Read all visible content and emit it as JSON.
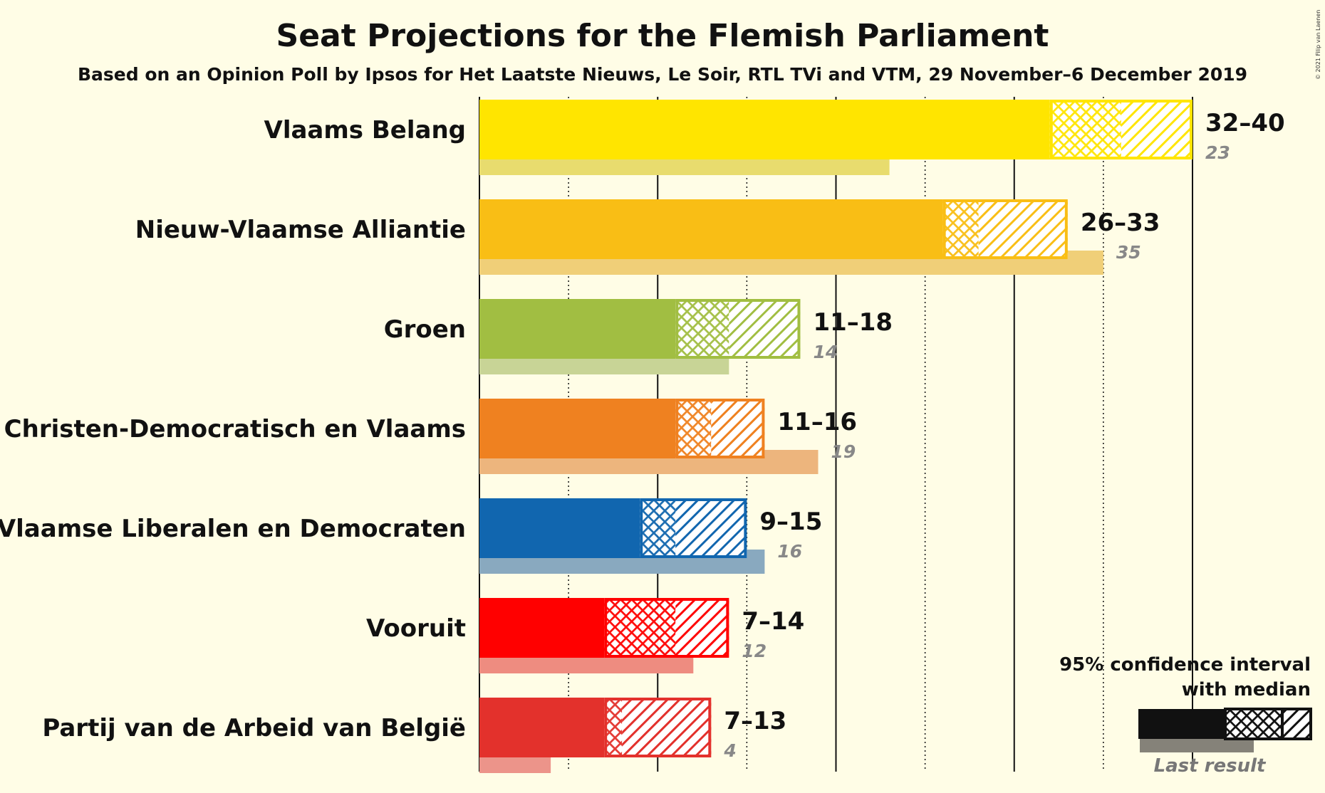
{
  "chart_data": {
    "type": "bar",
    "title": "Seat Projections for the Flemish Parliament",
    "subtitle": "Based on an Opinion Poll by Ipsos for Het Laatste Nieuws, Le Soir, RTL TVi and VTM, 29 November–6 December 2019",
    "copyright": "© 2021 Filip van Laenen",
    "xlim": [
      0,
      40
    ],
    "series": [
      {
        "name": "Vlaams Belang",
        "low": 32,
        "median": 36,
        "high": 40,
        "range_label": "32–40",
        "last_result": 23,
        "last_label": "23",
        "color": "#FFE500",
        "last_color": "#E8DC6E"
      },
      {
        "name": "Nieuw-Vlaamse Alliantie",
        "low": 26,
        "median": 28,
        "high": 33,
        "range_label": "26–33",
        "last_result": 35,
        "last_label": "35",
        "color": "#F9BE15",
        "last_color": "#F0CF78"
      },
      {
        "name": "Groen",
        "low": 11,
        "median": 14,
        "high": 18,
        "range_label": "11–18",
        "last_result": 14,
        "last_label": "14",
        "color": "#A1BE42",
        "last_color": "#C8D496"
      },
      {
        "name": "Christen-Democratisch en Vlaams",
        "low": 11,
        "median": 13,
        "high": 16,
        "range_label": "11–16",
        "last_result": 19,
        "last_label": "19",
        "color": "#EF8120",
        "last_color": "#EDB57D"
      },
      {
        "name": "Open Vlaamse Liberalen en Democraten",
        "low": 9,
        "median": 11,
        "high": 15,
        "range_label": "9–15",
        "last_result": 16,
        "last_label": "16",
        "color": "#1166AF",
        "last_color": "#89A9BF"
      },
      {
        "name": "Vooruit",
        "low": 7,
        "median": 11,
        "high": 14,
        "range_label": "7–14",
        "last_result": 12,
        "last_label": "12",
        "color": "#FF0000",
        "last_color": "#EE8C80"
      },
      {
        "name": "Partij van de Arbeid van België",
        "low": 7,
        "median": 8,
        "high": 13,
        "range_label": "7–13",
        "last_result": 4,
        "last_label": "4",
        "color": "#E3312C",
        "last_color": "#EC948A"
      }
    ],
    "legend": {
      "position": "bottom-right",
      "line1": "95% confidence interval",
      "line2": "with median",
      "last_result": "Last result"
    }
  }
}
